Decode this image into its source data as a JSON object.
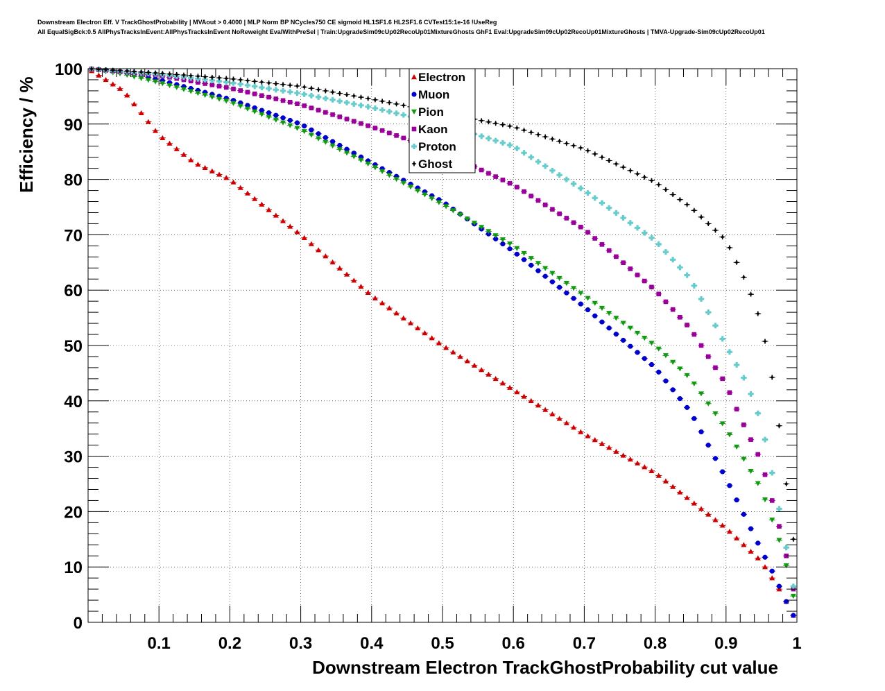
{
  "title_line1": "Downstream Electron Eff. V TrackGhostProbability | MVAout > 0.4000 | MLP Norm BP NCycles750 CE sigmoid HL1SF1.6 HL2SF1.6 CVTest15:1e-16 !UseReg",
  "title_line2": "All EqualSigBck:0.5 AllPhysTracksInEvent:AllPhysTracksInEvent NoReweight EvalWithPreSel | Train:UpgradeSim09cUp02RecoUp01MixtureGhosts GhF1 Eval:UpgradeSim09cUp02RecoUp01MixtureGhosts | TMVA-Upgrade-Sim09cUp02RecoUp01",
  "chart_data": {
    "type": "scatter",
    "xlabel": "Downstream Electron TrackGhostProbability cut value",
    "ylabel": "Efficiency / %",
    "xlim": [
      0,
      1
    ],
    "ylim": [
      0,
      100
    ],
    "grid": true,
    "legend_position": "top-center",
    "x_ticks": [
      "0.1",
      "0.2",
      "0.3",
      "0.4",
      "0.5",
      "0.6",
      "0.7",
      "0.8",
      "0.9",
      "1"
    ],
    "y_ticks": [
      "0",
      "10",
      "20",
      "30",
      "40",
      "50",
      "60",
      "70",
      "80",
      "90",
      "100"
    ],
    "x_start": 0.005,
    "x_step": 0.01,
    "series": [
      {
        "name": "Electron",
        "marker": "triangle",
        "color": "#cc0000",
        "anchors": [
          [
            0,
            100
          ],
          [
            0.05,
            96
          ],
          [
            0.1,
            88
          ],
          [
            0.15,
            83
          ],
          [
            0.2,
            80
          ],
          [
            0.3,
            70
          ],
          [
            0.4,
            59
          ],
          [
            0.5,
            50
          ],
          [
            0.6,
            42
          ],
          [
            0.7,
            34
          ],
          [
            0.8,
            27
          ],
          [
            0.9,
            17
          ],
          [
            0.95,
            11
          ],
          [
            0.97,
            7
          ],
          [
            0.98,
            5
          ],
          [
            1.0,
            0
          ]
        ]
      },
      {
        "name": "Muon",
        "marker": "circle",
        "color": "#0000cc",
        "anchors": [
          [
            0,
            100
          ],
          [
            0.05,
            99.3
          ],
          [
            0.1,
            98
          ],
          [
            0.2,
            94.5
          ],
          [
            0.3,
            90
          ],
          [
            0.4,
            83
          ],
          [
            0.5,
            76
          ],
          [
            0.6,
            67
          ],
          [
            0.7,
            57
          ],
          [
            0.8,
            46
          ],
          [
            0.85,
            38
          ],
          [
            0.9,
            26
          ],
          [
            0.95,
            13
          ],
          [
            0.97,
            8
          ],
          [
            0.98,
            5
          ],
          [
            1.0,
            0
          ]
        ]
      },
      {
        "name": "Pion",
        "marker": "triangle-down",
        "color": "#119911",
        "anchors": [
          [
            0,
            100
          ],
          [
            0.05,
            99
          ],
          [
            0.1,
            97.5
          ],
          [
            0.2,
            94
          ],
          [
            0.3,
            89
          ],
          [
            0.4,
            82.5
          ],
          [
            0.5,
            75.5
          ],
          [
            0.6,
            68
          ],
          [
            0.7,
            59
          ],
          [
            0.8,
            50
          ],
          [
            0.85,
            44
          ],
          [
            0.9,
            35
          ],
          [
            0.95,
            24
          ],
          [
            0.98,
            13
          ],
          [
            1.0,
            2
          ]
        ]
      },
      {
        "name": "Kaon",
        "marker": "square",
        "color": "#990099",
        "anchors": [
          [
            0,
            100
          ],
          [
            0.05,
            99.4
          ],
          [
            0.1,
            98.8
          ],
          [
            0.2,
            96.5
          ],
          [
            0.3,
            93.5
          ],
          [
            0.4,
            89.5
          ],
          [
            0.5,
            85
          ],
          [
            0.6,
            79
          ],
          [
            0.7,
            71
          ],
          [
            0.8,
            60
          ],
          [
            0.85,
            53
          ],
          [
            0.9,
            43
          ],
          [
            0.92,
            37
          ],
          [
            0.95,
            29
          ],
          [
            0.98,
            15
          ],
          [
            1.0,
            3
          ]
        ]
      },
      {
        "name": "Proton",
        "marker": "plus",
        "color": "#66cccc",
        "anchors": [
          [
            0,
            100
          ],
          [
            0.05,
            99.5
          ],
          [
            0.1,
            99
          ],
          [
            0.2,
            97.5
          ],
          [
            0.3,
            95.5
          ],
          [
            0.4,
            93
          ],
          [
            0.5,
            90
          ],
          [
            0.6,
            86
          ],
          [
            0.7,
            78
          ],
          [
            0.8,
            69
          ],
          [
            0.85,
            62
          ],
          [
            0.9,
            50
          ],
          [
            0.93,
            43
          ],
          [
            0.95,
            36
          ],
          [
            0.97,
            24
          ],
          [
            1.0,
            3
          ]
        ]
      },
      {
        "name": "Ghost",
        "marker": "cross",
        "color": "#000000",
        "anchors": [
          [
            0,
            100
          ],
          [
            0.05,
            99.6
          ],
          [
            0.1,
            99.2
          ],
          [
            0.2,
            98.2
          ],
          [
            0.3,
            96.8
          ],
          [
            0.4,
            94.5
          ],
          [
            0.5,
            92
          ],
          [
            0.6,
            89.5
          ],
          [
            0.7,
            85.5
          ],
          [
            0.8,
            79.5
          ],
          [
            0.85,
            75
          ],
          [
            0.9,
            69
          ],
          [
            0.93,
            61
          ],
          [
            0.95,
            54
          ],
          [
            0.97,
            41
          ],
          [
            0.98,
            30
          ],
          [
            0.995,
            15
          ],
          [
            1.0,
            12
          ]
        ]
      }
    ]
  }
}
